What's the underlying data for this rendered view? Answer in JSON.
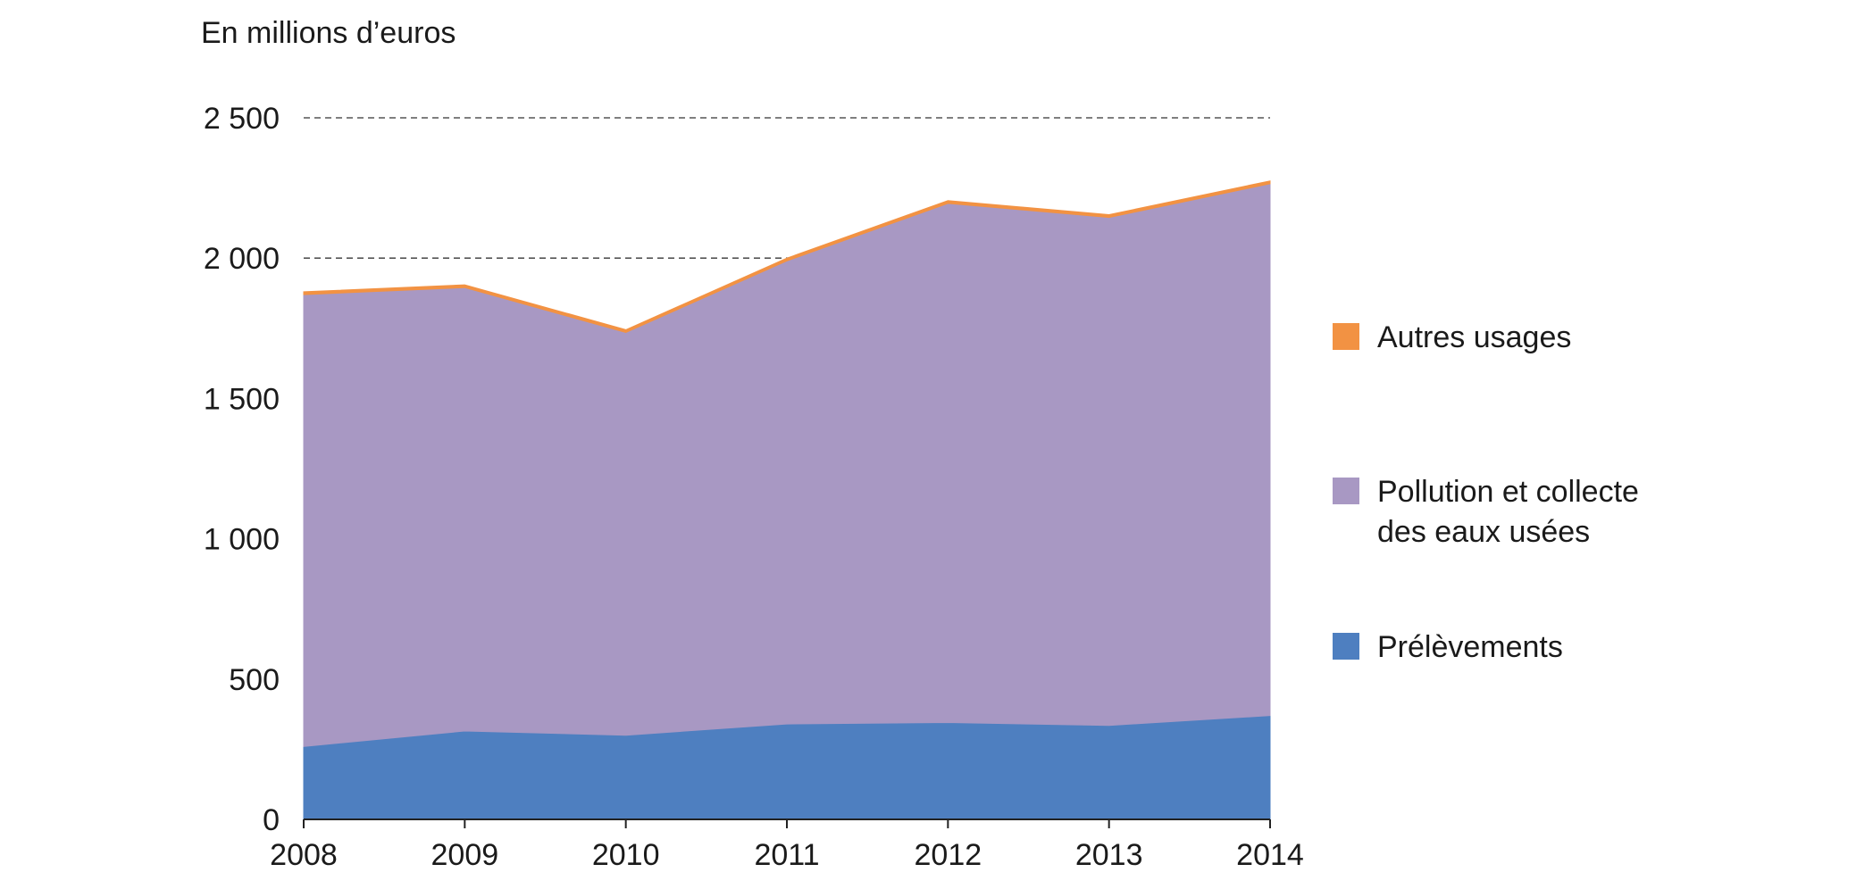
{
  "chart_data": {
    "type": "area",
    "stacked": true,
    "unit_label": "En millions d’euros",
    "title": "",
    "xlabel": "",
    "ylabel": "",
    "x": [
      2008,
      2009,
      2010,
      2011,
      2012,
      2013,
      2014
    ],
    "x_tick_labels": [
      "2008",
      "2009",
      "2010",
      "2011",
      "2012",
      "2013",
      "2014"
    ],
    "ylim": [
      0,
      2500
    ],
    "y_ticks": [
      0,
      500,
      1000,
      1500,
      2000,
      2500
    ],
    "y_tick_labels": [
      "0",
      "500",
      "1 000",
      "1 500",
      "2 000",
      "2 500"
    ],
    "dashed_gridlines_at": [
      2000,
      2500
    ],
    "series": [
      {
        "name": "Prélèvements",
        "color": "#4e7fc0",
        "values": [
          260,
          315,
          300,
          340,
          345,
          335,
          370
        ]
      },
      {
        "name": "Pollution et collecte des eaux usées",
        "name_lines": [
          "Pollution et collecte",
          "des eaux usées"
        ],
        "color": "#a898c3",
        "values": [
          1610,
          1580,
          1435,
          1650,
          1850,
          1810,
          1895
        ]
      },
      {
        "name": "Autres usages",
        "color": "#f29243",
        "values": [
          10,
          10,
          10,
          10,
          10,
          10,
          10
        ]
      }
    ],
    "legend_order": [
      "Autres usages",
      "Pollution et collecte des eaux usées",
      "Prélèvements"
    ],
    "legend_position": "right"
  }
}
